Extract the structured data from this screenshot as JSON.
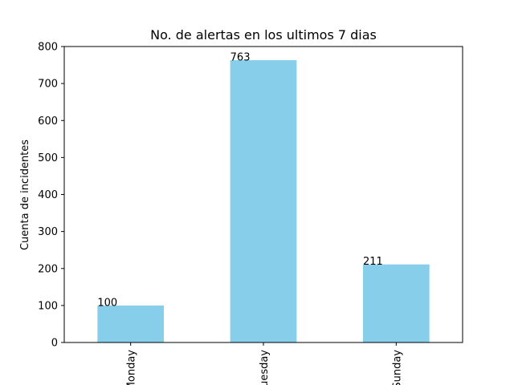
{
  "chart_data": {
    "type": "bar",
    "title": "No. de alertas en los ultimos 7 dias",
    "xlabel": "",
    "ylabel": "Cuenta de incidentes",
    "categories": [
      "Monday",
      "Tuesday",
      "Sunday"
    ],
    "values": [
      100,
      763,
      211
    ],
    "data_labels": [
      "100",
      "763",
      "211"
    ],
    "ylim": [
      0,
      800
    ],
    "yticks": [
      0,
      100,
      200,
      300,
      400,
      500,
      600,
      700,
      800
    ],
    "grid": false,
    "legend": "none",
    "colors": {
      "bar": "#87ceeb",
      "axis": "#000000",
      "background": "#ffffff"
    }
  }
}
